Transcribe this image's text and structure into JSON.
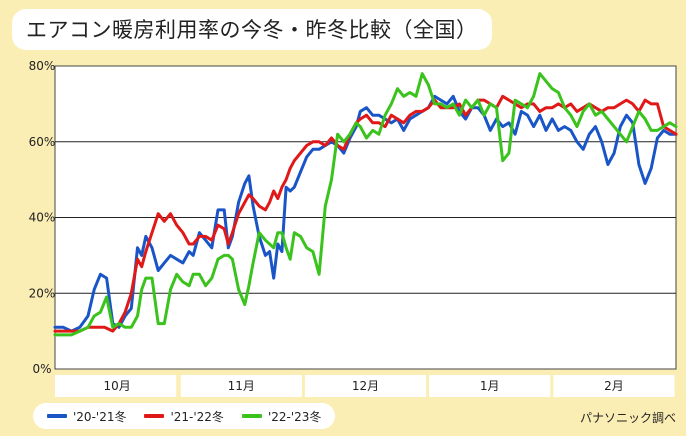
{
  "title": "エアコン暖房利用率の今冬・昨冬比較（全国）",
  "source": "パナソニック調べ",
  "chart_data": {
    "type": "line",
    "title": "エアコン暖房利用率の今冬・昨冬比較（全国）",
    "xlabel": "",
    "ylabel": "",
    "ylim": [
      0,
      80
    ],
    "yticks": [
      "0%",
      "20%",
      "40%",
      "60%",
      "80%"
    ],
    "months": [
      "10月",
      "11月",
      "12月",
      "1月",
      "2月"
    ],
    "grid": true,
    "legend_position": "bottom",
    "n_days": 150,
    "series": [
      {
        "name": "'20-'21冬",
        "color": "#1a55c8",
        "points": [
          [
            0,
            11
          ],
          [
            4,
            11
          ],
          [
            8,
            10
          ],
          [
            12,
            11
          ],
          [
            16,
            14
          ],
          [
            19,
            21
          ],
          [
            22,
            25
          ],
          [
            25,
            24
          ],
          [
            28,
            12
          ],
          [
            31,
            11
          ],
          [
            34,
            14
          ],
          [
            37,
            16
          ],
          [
            40,
            32
          ],
          [
            42,
            30
          ],
          [
            44,
            35
          ],
          [
            47,
            32
          ],
          [
            50,
            26
          ],
          [
            53,
            28
          ],
          [
            56,
            30
          ],
          [
            59,
            29
          ],
          [
            62,
            28
          ],
          [
            65,
            31
          ],
          [
            67,
            30
          ],
          [
            70,
            36
          ],
          [
            73,
            34
          ],
          [
            76,
            32
          ],
          [
            79,
            42
          ],
          [
            82,
            42
          ],
          [
            84,
            32
          ],
          [
            86,
            35
          ],
          [
            89,
            44
          ],
          [
            92,
            49
          ],
          [
            94,
            51
          ],
          [
            96,
            43
          ],
          [
            99,
            35
          ],
          [
            102,
            30
          ],
          [
            104,
            31
          ],
          [
            106,
            24
          ],
          [
            108,
            33
          ],
          [
            110,
            31
          ],
          [
            112,
            48
          ],
          [
            114,
            47
          ],
          [
            116,
            48
          ],
          [
            119,
            52
          ],
          [
            122,
            56
          ],
          [
            125,
            58
          ],
          [
            128,
            58
          ],
          [
            131,
            59
          ],
          [
            134,
            60
          ],
          [
            137,
            59
          ],
          [
            140,
            57
          ],
          [
            143,
            61
          ],
          [
            146,
            64
          ],
          [
            148,
            68
          ],
          [
            151,
            69
          ],
          [
            154,
            67
          ],
          [
            157,
            67
          ],
          [
            160,
            66
          ],
          [
            163,
            65
          ],
          [
            166,
            66
          ],
          [
            169,
            63
          ],
          [
            172,
            66
          ],
          [
            175,
            67
          ],
          [
            178,
            68
          ],
          [
            181,
            69
          ],
          [
            184,
            72
          ],
          [
            187,
            71
          ],
          [
            190,
            70
          ],
          [
            193,
            72
          ],
          [
            196,
            68
          ],
          [
            199,
            66
          ],
          [
            202,
            69
          ],
          [
            205,
            69
          ],
          [
            208,
            67
          ],
          [
            211,
            63
          ],
          [
            214,
            66
          ],
          [
            217,
            64
          ],
          [
            220,
            65
          ],
          [
            223,
            62
          ],
          [
            226,
            68
          ],
          [
            229,
            67
          ],
          [
            232,
            64
          ],
          [
            235,
            67
          ],
          [
            238,
            63
          ],
          [
            241,
            66
          ],
          [
            244,
            63
          ],
          [
            247,
            64
          ],
          [
            250,
            63
          ],
          [
            253,
            60
          ],
          [
            256,
            58
          ],
          [
            259,
            62
          ],
          [
            262,
            64
          ],
          [
            265,
            60
          ],
          [
            268,
            54
          ],
          [
            271,
            57
          ],
          [
            274,
            64
          ],
          [
            277,
            67
          ],
          [
            280,
            65
          ],
          [
            283,
            54
          ],
          [
            286,
            49
          ],
          [
            289,
            53
          ],
          [
            292,
            61
          ],
          [
            295,
            63
          ],
          [
            298,
            62
          ],
          [
            301,
            62
          ]
        ]
      },
      {
        "name": "'21-'22冬",
        "color": "#e01818",
        "points": [
          [
            0,
            10
          ],
          [
            4,
            10
          ],
          [
            8,
            10
          ],
          [
            12,
            10
          ],
          [
            16,
            11
          ],
          [
            20,
            11
          ],
          [
            24,
            11
          ],
          [
            28,
            10
          ],
          [
            31,
            12
          ],
          [
            34,
            15
          ],
          [
            37,
            20
          ],
          [
            40,
            29
          ],
          [
            42,
            27
          ],
          [
            44,
            31
          ],
          [
            47,
            36
          ],
          [
            50,
            41
          ],
          [
            53,
            39
          ],
          [
            56,
            41
          ],
          [
            59,
            38
          ],
          [
            62,
            36
          ],
          [
            65,
            33
          ],
          [
            67,
            33
          ],
          [
            70,
            35
          ],
          [
            73,
            35
          ],
          [
            76,
            34
          ],
          [
            79,
            38
          ],
          [
            82,
            37
          ],
          [
            84,
            33
          ],
          [
            86,
            36
          ],
          [
            89,
            41
          ],
          [
            92,
            44
          ],
          [
            94,
            46
          ],
          [
            96,
            45
          ],
          [
            99,
            43
          ],
          [
            102,
            42
          ],
          [
            104,
            44
          ],
          [
            106,
            47
          ],
          [
            108,
            45
          ],
          [
            110,
            48
          ],
          [
            112,
            50
          ],
          [
            114,
            53
          ],
          [
            116,
            55
          ],
          [
            119,
            57
          ],
          [
            122,
            59
          ],
          [
            125,
            60
          ],
          [
            128,
            60
          ],
          [
            131,
            59
          ],
          [
            134,
            61
          ],
          [
            137,
            59
          ],
          [
            140,
            58
          ],
          [
            143,
            62
          ],
          [
            146,
            65
          ],
          [
            148,
            66
          ],
          [
            151,
            67
          ],
          [
            154,
            65
          ],
          [
            157,
            65
          ],
          [
            160,
            64
          ],
          [
            163,
            67
          ],
          [
            166,
            66
          ],
          [
            169,
            65
          ],
          [
            172,
            67
          ],
          [
            175,
            68
          ],
          [
            178,
            68
          ],
          [
            181,
            69
          ],
          [
            184,
            71
          ],
          [
            187,
            69
          ],
          [
            190,
            69
          ],
          [
            193,
            69
          ],
          [
            196,
            70
          ],
          [
            199,
            67
          ],
          [
            202,
            69
          ],
          [
            205,
            71
          ],
          [
            208,
            71
          ],
          [
            211,
            70
          ],
          [
            214,
            69
          ],
          [
            217,
            72
          ],
          [
            220,
            71
          ],
          [
            223,
            70
          ],
          [
            226,
            69
          ],
          [
            229,
            70
          ],
          [
            232,
            70
          ],
          [
            235,
            68
          ],
          [
            238,
            69
          ],
          [
            241,
            69
          ],
          [
            244,
            70
          ],
          [
            247,
            69
          ],
          [
            250,
            70
          ],
          [
            253,
            68
          ],
          [
            256,
            69
          ],
          [
            259,
            70
          ],
          [
            262,
            69
          ],
          [
            265,
            68
          ],
          [
            268,
            69
          ],
          [
            271,
            69
          ],
          [
            274,
            70
          ],
          [
            277,
            71
          ],
          [
            280,
            70
          ],
          [
            283,
            68
          ],
          [
            286,
            71
          ],
          [
            289,
            70
          ],
          [
            292,
            70
          ],
          [
            295,
            64
          ],
          [
            298,
            63
          ],
          [
            301,
            62
          ]
        ]
      },
      {
        "name": "'22-'23冬",
        "color": "#3ac31d",
        "points": [
          [
            0,
            9
          ],
          [
            4,
            9
          ],
          [
            8,
            9
          ],
          [
            12,
            10
          ],
          [
            16,
            11
          ],
          [
            19,
            14
          ],
          [
            22,
            15
          ],
          [
            25,
            19
          ],
          [
            28,
            11
          ],
          [
            31,
            12
          ],
          [
            34,
            11
          ],
          [
            37,
            11
          ],
          [
            40,
            14
          ],
          [
            42,
            21
          ],
          [
            44,
            24
          ],
          [
            47,
            24
          ],
          [
            50,
            12
          ],
          [
            53,
            12
          ],
          [
            56,
            21
          ],
          [
            59,
            25
          ],
          [
            62,
            23
          ],
          [
            65,
            22
          ],
          [
            67,
            25
          ],
          [
            70,
            25
          ],
          [
            73,
            22
          ],
          [
            76,
            24
          ],
          [
            79,
            29
          ],
          [
            82,
            30
          ],
          [
            84,
            30
          ],
          [
            86,
            29
          ],
          [
            89,
            21
          ],
          [
            92,
            17
          ],
          [
            94,
            22
          ],
          [
            96,
            28
          ],
          [
            99,
            36
          ],
          [
            102,
            34
          ],
          [
            104,
            33
          ],
          [
            106,
            32
          ],
          [
            108,
            36
          ],
          [
            110,
            36
          ],
          [
            112,
            32
          ],
          [
            114,
            29
          ],
          [
            116,
            36
          ],
          [
            119,
            35
          ],
          [
            122,
            32
          ],
          [
            125,
            31
          ],
          [
            128,
            25
          ],
          [
            131,
            43
          ],
          [
            134,
            50
          ],
          [
            137,
            62
          ],
          [
            140,
            60
          ],
          [
            143,
            62
          ],
          [
            146,
            65
          ],
          [
            148,
            64
          ],
          [
            151,
            61
          ],
          [
            154,
            63
          ],
          [
            157,
            62
          ],
          [
            160,
            67
          ],
          [
            163,
            70
          ],
          [
            166,
            74
          ],
          [
            169,
            72
          ],
          [
            172,
            73
          ],
          [
            175,
            72
          ],
          [
            178,
            78
          ],
          [
            181,
            75
          ],
          [
            184,
            70
          ],
          [
            187,
            70
          ],
          [
            190,
            69
          ],
          [
            193,
            70
          ],
          [
            196,
            67
          ],
          [
            199,
            71
          ],
          [
            202,
            69
          ],
          [
            205,
            71
          ],
          [
            208,
            67
          ],
          [
            211,
            70
          ],
          [
            214,
            69
          ],
          [
            217,
            55
          ],
          [
            220,
            57
          ],
          [
            223,
            71
          ],
          [
            226,
            70
          ],
          [
            229,
            69
          ],
          [
            232,
            72
          ],
          [
            235,
            78
          ],
          [
            238,
            76
          ],
          [
            241,
            74
          ],
          [
            244,
            73
          ],
          [
            247,
            69
          ],
          [
            250,
            67
          ],
          [
            253,
            64
          ],
          [
            256,
            68
          ],
          [
            259,
            70
          ],
          [
            262,
            67
          ],
          [
            265,
            68
          ],
          [
            268,
            66
          ],
          [
            271,
            64
          ],
          [
            274,
            62
          ],
          [
            277,
            60
          ],
          [
            280,
            64
          ],
          [
            283,
            68
          ],
          [
            286,
            66
          ],
          [
            289,
            63
          ],
          [
            292,
            63
          ],
          [
            295,
            64
          ],
          [
            298,
            65
          ],
          [
            301,
            64
          ]
        ]
      }
    ]
  }
}
